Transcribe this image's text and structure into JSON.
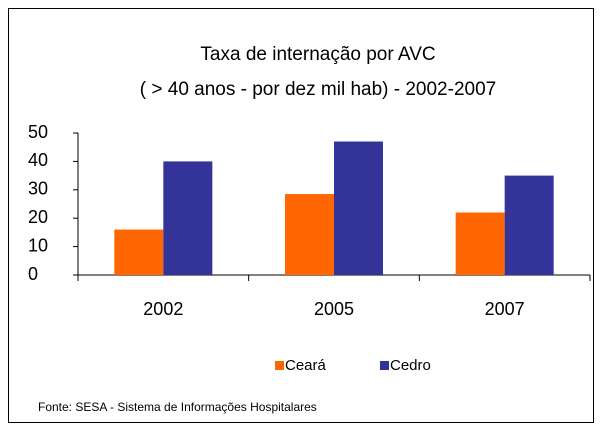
{
  "chart_data": {
    "type": "bar",
    "title": "Taxa de internação por AVC",
    "subtitle": "( > 40 anos - por dez mil hab) - 2002-2007",
    "categories": [
      "2002",
      "2005",
      "2007"
    ],
    "series": [
      {
        "name": "Ceará",
        "color": "#ff6600",
        "values": [
          16,
          28.5,
          22
        ]
      },
      {
        "name": "Cedro",
        "color": "#333399",
        "values": [
          40,
          47,
          35
        ]
      }
    ],
    "ylim": [
      0,
      50
    ],
    "yticks": [
      0,
      10,
      20,
      30,
      40,
      50
    ],
    "legend": "bottom",
    "source": "Fonte: SESA - Sistema de Informações Hospitalares"
  }
}
